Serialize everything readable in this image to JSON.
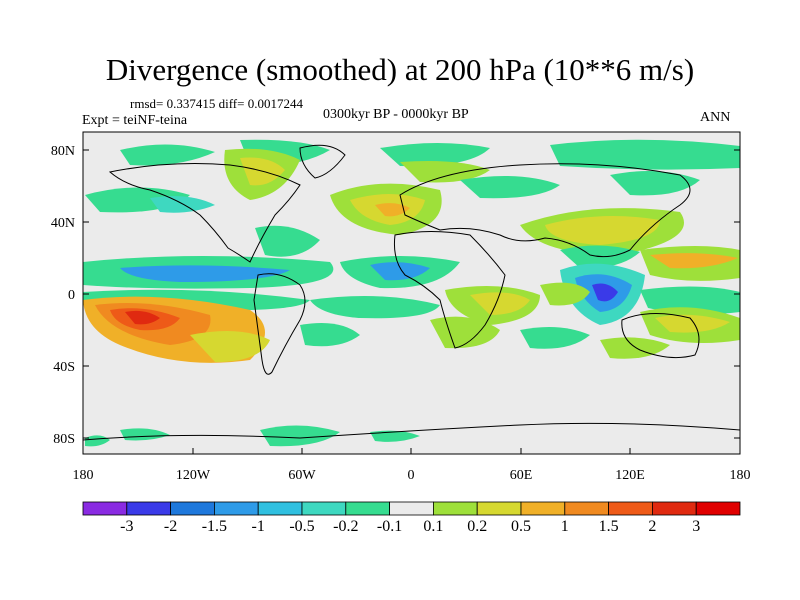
{
  "title": "Divergence (smoothed) at 200 hPa (10**6 m/s)",
  "stats_text": "rmsd= 0.337415 diff= 0.0017244",
  "experiment": "Expt = teiNF-teina",
  "period": "0300kyr BP - 0000kyr BP",
  "season": "ANN",
  "lat_labels": [
    "80N",
    "40N",
    "0",
    "40S",
    "80S"
  ],
  "lon_labels": [
    "180",
    "120W",
    "60W",
    "0",
    "60E",
    "120E",
    "180"
  ],
  "colorbar": {
    "labels": [
      "-3",
      "-2",
      "-1.5",
      "-1",
      "-0.5",
      "-0.2",
      "-0.1",
      "0.1",
      "0.2",
      "0.5",
      "1",
      "1.5",
      "2",
      "3"
    ],
    "colors": [
      "#8a2be2",
      "#3a3ae8",
      "#1e78dc",
      "#2e9be8",
      "#30c0e0",
      "#3ed8c0",
      "#36dc90",
      "#ebebeb",
      "#9ee03a",
      "#d6d830",
      "#f0b028",
      "#f08a20",
      "#ee5a18",
      "#e02a10",
      "#e00000"
    ]
  }
}
